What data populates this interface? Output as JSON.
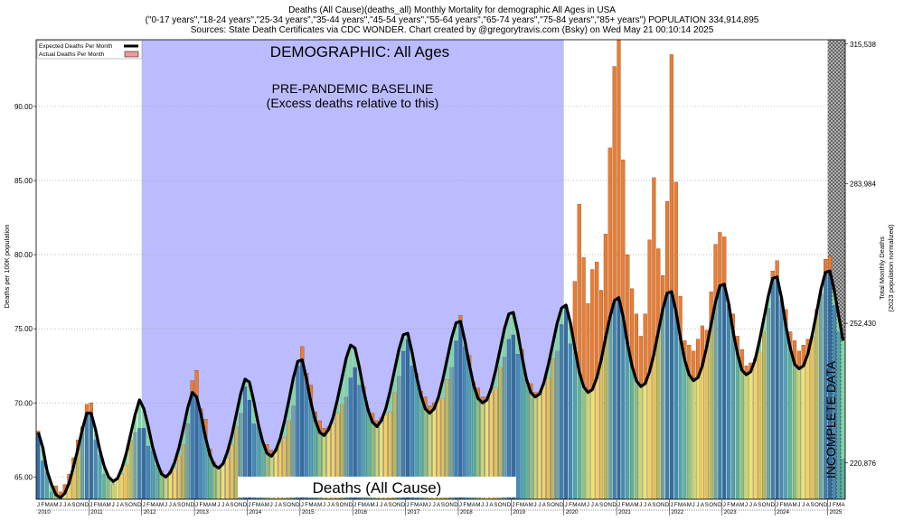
{
  "header": {
    "line1": "Deaths (All Cause)(deaths_all) Monthly Mortality for demographic All Ages in USA",
    "line2": "(\"0-17 years\",\"18-24 years\",\"25-34 years\",\"35-44 years\",\"45-54 years\",\"55-64 years\",\"65-74 years\",\"75-84 years\",\"85+ years\") POPULATION 334,914,895",
    "line3": "Sources: State Death Certificates via CDC WONDER.                Chart created by @gregorytravis.com (Bsky) on Wed May 21 00:10:14 2025"
  },
  "colors": {
    "baseline_region": "#bbbbff",
    "expected_line": "#000000",
    "excess": "#ef7b2c",
    "below_expected": "#7fd6a0",
    "incomplete_hatch": "#555555"
  },
  "chart_data": {
    "type": "bar",
    "ylabel": "Deaths per 100K population",
    "y2label_line1": "Total Monthly Deaths",
    "y2label_line2": "(2023 population normalized)",
    "ylim": [
      63.5,
      94.5
    ],
    "y_ticks": [
      "65.00",
      "70.00",
      "75.00",
      "80.00",
      "85.00",
      "90.00"
    ],
    "y_tick_values": [
      65,
      70,
      75,
      80,
      85,
      90
    ],
    "y2_ticks": [
      "220,876",
      "252,430",
      "283,984",
      "315,538"
    ],
    "y2_tick_values": [
      65.95,
      75.37,
      84.79,
      94.21
    ],
    "x_start": "2010-01",
    "month_letters": [
      "J",
      "F",
      "M",
      "A",
      "M",
      "J",
      "J",
      "A",
      "S",
      "O",
      "N",
      "D"
    ],
    "years": [
      "2010",
      "2011",
      "2012",
      "2013",
      "2014",
      "2015",
      "2016",
      "2017",
      "2018",
      "2019",
      "2020",
      "2021",
      "2022",
      "2023",
      "2024",
      "2025"
    ],
    "legend": [
      "Expected Deaths Per Month",
      "Actual Deaths Per Month"
    ],
    "annotations": {
      "demographic": "DEMOGRAPHIC: All Ages",
      "baseline_line1": "PRE-PANDEMIC BASELINE",
      "baseline_line2": "(Excess deaths relative to this)",
      "footer_label": "Deaths (All Cause)",
      "incomplete": "INCOMPLETE DATA"
    },
    "baseline_period": [
      "2012-01",
      "2019-12"
    ],
    "incomplete_from": "2025-01",
    "series": [
      {
        "name": "Actual Deaths Per Month",
        "values": [
          68.1,
          66.1,
          65.3,
          64.0,
          64.4,
          64.0,
          64.5,
          65.2,
          66.3,
          67.5,
          68.4,
          69.9,
          70.0,
          67.5,
          66.5,
          65.2,
          65.0,
          64.5,
          64.8,
          65.2,
          65.8,
          67.5,
          68.0,
          68.3,
          68.3,
          67.1,
          66.8,
          65.8,
          65.4,
          65.1,
          65.4,
          65.6,
          66.4,
          67.2,
          68.6,
          71.5,
          72.2,
          69.6,
          68.9,
          66.9,
          66.0,
          65.7,
          65.9,
          66.3,
          67.2,
          68.4,
          69.3,
          71.1,
          70.2,
          68.6,
          68.4,
          67.4,
          67.2,
          66.8,
          66.9,
          67.3,
          67.7,
          68.8,
          69.8,
          72.5,
          73.8,
          72.0,
          71.2,
          69.4,
          68.8,
          68.3,
          68.4,
          68.6,
          69.3,
          69.9,
          70.4,
          71.7,
          72.4,
          71.2,
          71.1,
          69.6,
          69.3,
          68.8,
          69.0,
          69.2,
          69.4,
          70.7,
          71.8,
          73.5,
          74.3,
          72.5,
          72.0,
          70.8,
          70.4,
          69.8,
          70.0,
          70.2,
          70.3,
          71.6,
          72.4,
          74.2,
          75.9,
          73.8,
          73.2,
          71.4,
          71.0,
          70.4,
          70.4,
          70.7,
          71.0,
          72.4,
          73.1,
          74.3,
          74.6,
          73.3,
          73.6,
          71.6,
          71.3,
          70.7,
          70.7,
          71.2,
          71.7,
          73.0,
          73.5,
          75.3,
          76.5,
          74.0,
          78.2,
          83.4,
          79.8,
          76.7,
          79.0,
          79.5,
          77.6,
          81.4,
          87.2,
          92.7,
          94.5,
          86.4,
          80.0,
          77.7,
          76.0,
          74.5,
          76.0,
          81.0,
          85.2,
          80.4,
          78.6,
          83.6,
          93.5,
          84.9,
          77.2,
          74.2,
          73.9,
          73.5,
          74.3,
          75.2,
          74.9,
          77.5,
          80.7,
          81.5,
          81.2,
          76.6,
          76.0,
          74.5,
          73.6,
          72.5,
          72.7,
          73.0,
          73.4,
          74.8,
          76.4,
          78.9,
          79.6,
          77.0,
          76.3,
          74.8,
          74.2,
          73.5,
          73.9,
          74.3,
          74.5,
          76.3,
          77.4,
          79.7,
          79.9,
          76.6,
          74.8,
          66.2
        ]
      },
      {
        "name": "Expected Deaths Per Month",
        "values": [
          68.0,
          67.0,
          65.4,
          64.5,
          63.8,
          63.6,
          63.9,
          64.6,
          65.7,
          66.9,
          68.2,
          69.3,
          69.3,
          68.2,
          66.8,
          65.7,
          65.0,
          64.7,
          64.9,
          65.6,
          66.6,
          67.9,
          69.2,
          70.2,
          69.6,
          68.4,
          67.0,
          66.0,
          65.2,
          65.0,
          65.3,
          66.0,
          67.0,
          68.3,
          69.7,
          70.7,
          70.4,
          69.2,
          67.7,
          66.5,
          65.8,
          65.6,
          65.9,
          66.7,
          67.8,
          69.2,
          70.6,
          71.6,
          71.4,
          70.1,
          68.6,
          67.4,
          66.6,
          66.4,
          66.8,
          67.6,
          68.8,
          70.2,
          71.7,
          72.8,
          72.9,
          71.6,
          70.0,
          68.8,
          68.0,
          67.8,
          68.2,
          69.0,
          70.2,
          71.6,
          73.0,
          73.9,
          73.7,
          72.4,
          70.8,
          69.5,
          68.7,
          68.4,
          68.8,
          69.6,
          70.8,
          72.2,
          73.6,
          74.6,
          74.7,
          73.4,
          71.8,
          70.5,
          69.6,
          69.3,
          69.6,
          70.4,
          71.6,
          73.0,
          74.4,
          75.4,
          75.5,
          74.2,
          72.6,
          71.2,
          70.3,
          70.0,
          70.2,
          71.0,
          72.2,
          73.6,
          75.0,
          76.0,
          76.1,
          74.8,
          73.1,
          71.6,
          70.7,
          70.4,
          70.6,
          71.4,
          72.6,
          74.0,
          75.4,
          76.4,
          76.6,
          75.4,
          73.7,
          72.1,
          71.1,
          70.7,
          70.9,
          71.7,
          72.9,
          74.4,
          75.8,
          76.9,
          77.1,
          75.8,
          74.0,
          72.5,
          71.5,
          71.1,
          71.3,
          72.1,
          73.3,
          74.8,
          76.3,
          77.4,
          77.5,
          76.2,
          74.4,
          72.9,
          71.9,
          71.5,
          71.7,
          72.5,
          73.8,
          75.3,
          76.8,
          77.9,
          78.0,
          76.7,
          74.8,
          73.3,
          72.2,
          71.9,
          72.1,
          72.9,
          74.2,
          75.7,
          77.2,
          78.4,
          78.5,
          77.1,
          75.2,
          73.7,
          72.6,
          72.3,
          72.5,
          73.3,
          74.6,
          76.1,
          77.7,
          78.8,
          78.9,
          77.6,
          75.9,
          74.2
        ]
      }
    ]
  }
}
